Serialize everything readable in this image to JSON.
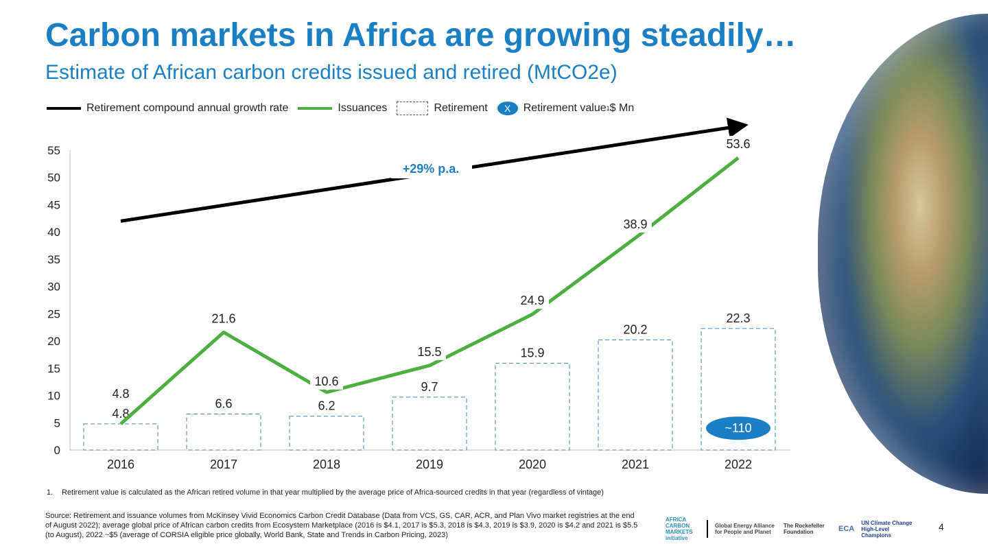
{
  "header": {
    "title": "Carbon markets in Africa are growing steadily…",
    "subtitle": "Estimate of African carbon credits issued and retired (MtCO2e)"
  },
  "legend": {
    "cagr": "Retirement compound annual growth rate",
    "issuances": "Issuances",
    "retirement": "Retirement",
    "value_marker": "X",
    "value": "Retirement value",
    "value_sup": "1",
    "value_unit": " $ Mn"
  },
  "colors": {
    "title": "#1a7fc4",
    "issuances": "#4caf3f",
    "retirement_border": "#3a86c6",
    "badge": "#1a7fc4",
    "arrow": "#000000"
  },
  "chart_data": {
    "type": "bar",
    "categories": [
      "2016",
      "2017",
      "2018",
      "2019",
      "2020",
      "2021",
      "2022"
    ],
    "ylim": [
      0,
      55
    ],
    "yticks": [
      0,
      5,
      10,
      15,
      20,
      25,
      30,
      35,
      40,
      45,
      50,
      55
    ],
    "grid": false,
    "legend_placement": "top",
    "series": [
      {
        "name": "Retirement",
        "type": "bar",
        "values": [
          4.8,
          6.6,
          6.2,
          9.7,
          15.9,
          20.2,
          22.3
        ]
      },
      {
        "name": "Issuances",
        "type": "line",
        "values": [
          4.8,
          21.6,
          10.6,
          15.5,
          24.9,
          38.9,
          53.6
        ]
      }
    ],
    "annotations": {
      "cagr_label": "+29% p.a.",
      "retirement_value_2022": "~110"
    }
  },
  "footnotes": {
    "note_num": "1.",
    "note": "Retirement value is calculated as the African retired volume in that year multiplied by the average price of Africa-sourced credits in that year (regardless of vintage)",
    "source": "Source: Retirement and issuance volumes from McKinsey Vivid Economics Carbon Credit Database (Data from VCS, GS, CAR, ACR, and Plan Vivo market registries at the end of August 2022); average global price of African carbon credits from Ecosystem Marketplace (2016 is $4.1, 2017 is $5.3, 2018 is $4.3, 2019 is $3.9, 2020 is $4.2 and 2021 is $5.5 (to August), 2022 ~$5 (average of CORSIA eligible price globally, World Bank, State and Trends in Carbon Pricing, 2023)"
  },
  "logos": [
    "AFRICA CARBON MARKETS initiative",
    "Global Energy Alliance for People and Planet",
    "The Rockefeller Foundation",
    "ECA",
    "UN Climate Change High-Level Champions"
  ],
  "page_number": "4"
}
